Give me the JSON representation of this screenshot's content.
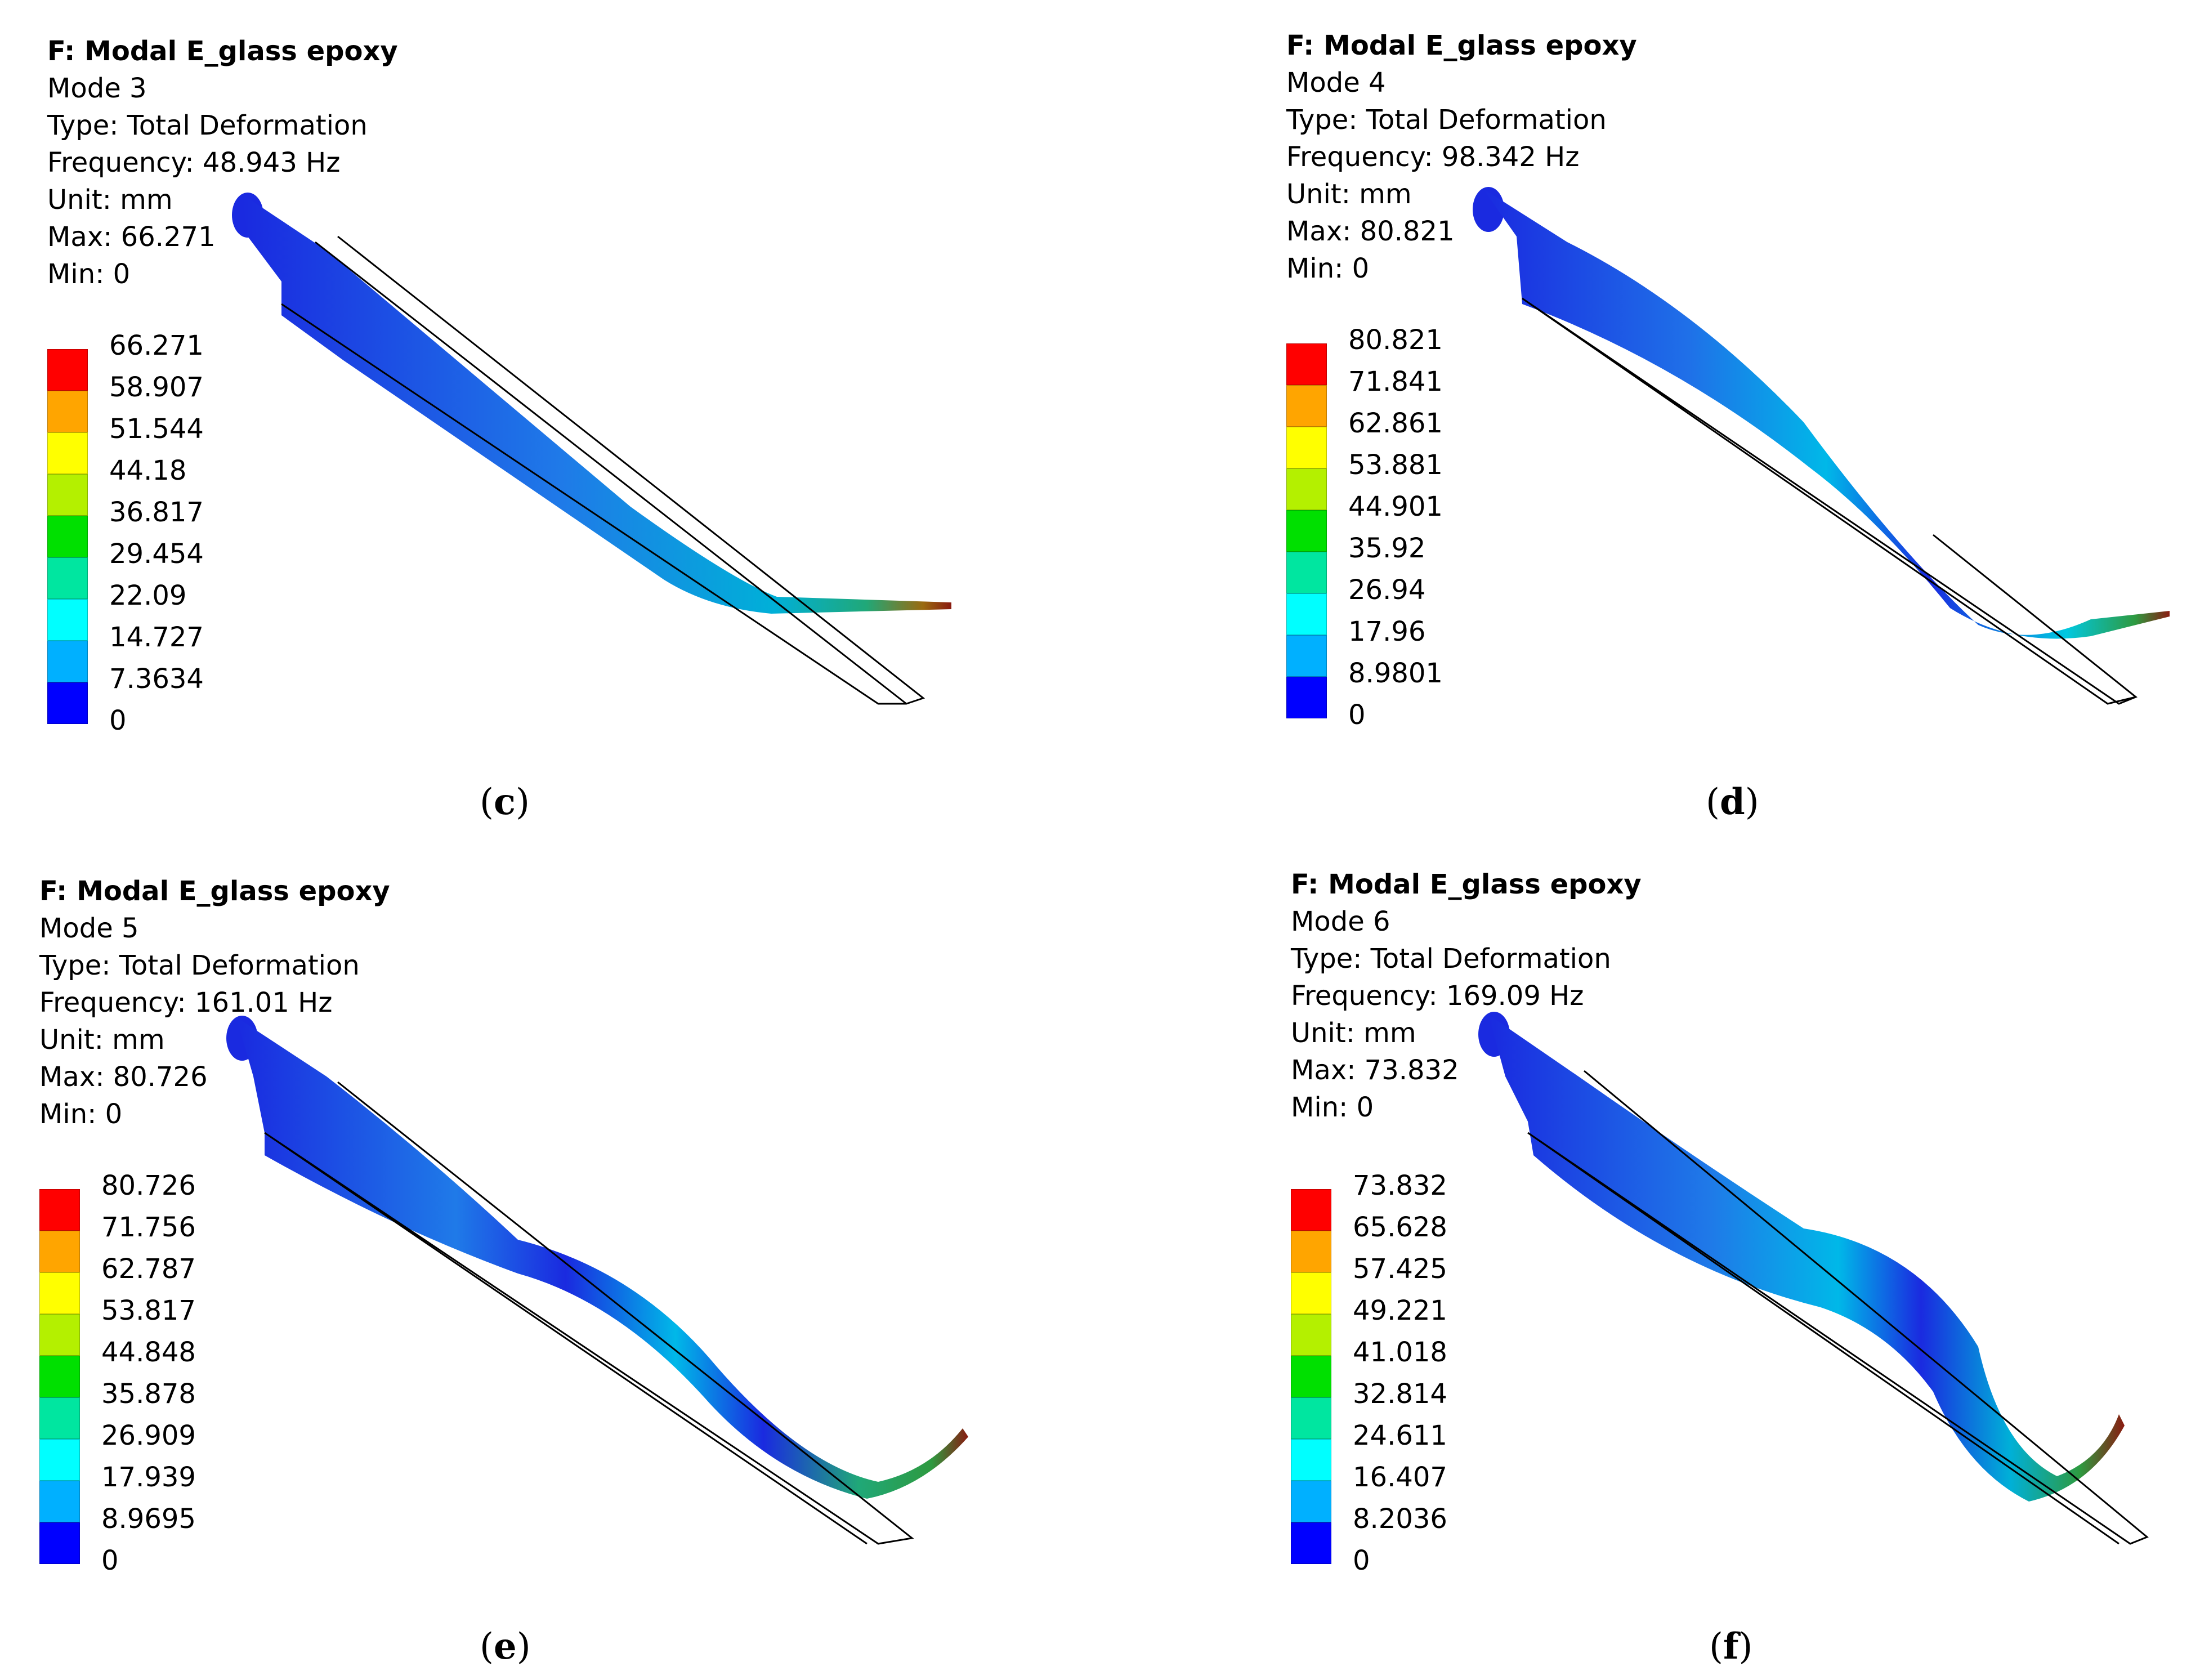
{
  "panels": {
    "c": {
      "title": "F: Modal E_glass epoxy",
      "mode": "Mode 3",
      "type": "Type: Total Deformation",
      "frequency": "Frequency: 48.943 Hz",
      "unit": "Unit: mm",
      "max": "Max: 66.271",
      "min": "Min: 0",
      "legend": [
        "66.271",
        "58.907",
        "51.544",
        "44.18",
        "36.817",
        "29.454",
        "22.09",
        "14.727",
        "7.3634",
        "0"
      ],
      "caption_open": "(",
      "caption_letter": "c",
      "caption_close": ")"
    },
    "d": {
      "title": "F: Modal E_glass epoxy",
      "mode": "Mode 4",
      "type": "Type: Total Deformation",
      "frequency": "Frequency: 98.342 Hz",
      "unit": "Unit: mm",
      "max": "Max: 80.821",
      "min": "Min: 0",
      "legend": [
        "80.821",
        "71.841",
        "62.861",
        "53.881",
        "44.901",
        "35.92",
        "26.94",
        "17.96",
        "8.9801",
        "0"
      ],
      "caption_open": "(",
      "caption_letter": "d",
      "caption_close": ")"
    },
    "e": {
      "title": "F: Modal E_glass epoxy",
      "mode": "Mode 5",
      "type": "Type: Total Deformation",
      "frequency": "Frequency: 161.01 Hz",
      "unit": "Unit: mm",
      "max": "Max: 80.726",
      "min": "Min: 0",
      "legend": [
        "80.726",
        "71.756",
        "62.787",
        "53.817",
        "44.848",
        "35.878",
        "26.909",
        "17.939",
        "8.9695",
        "0"
      ],
      "caption_open": "(",
      "caption_letter": "e",
      "caption_close": ")"
    },
    "f": {
      "title": "F: Modal E_glass epoxy",
      "mode": "Mode 6",
      "type": "Type: Total Deformation",
      "frequency": "Frequency: 169.09 Hz",
      "unit": "Unit: mm",
      "max": "Max: 73.832",
      "min": "Min: 0",
      "legend": [
        "73.832",
        "65.628",
        "57.425",
        "49.221",
        "41.018",
        "32.814",
        "24.611",
        "16.407",
        "8.2036",
        "0"
      ],
      "caption_open": "(",
      "caption_letter": "f",
      "caption_close": ")"
    }
  },
  "colors": {
    "scale": [
      "#ff0000",
      "#ffa500",
      "#ffff00",
      "#b4f000",
      "#00e000",
      "#00e6a0",
      "#00ffff",
      "#00b0ff",
      "#0050ff",
      "#0000ff"
    ],
    "body_dark": "#1a2ae0",
    "body_light": "#00b8e8",
    "tip_green": "#2e9a40",
    "tip_red": "#8a1a10",
    "outline": "#000000"
  }
}
